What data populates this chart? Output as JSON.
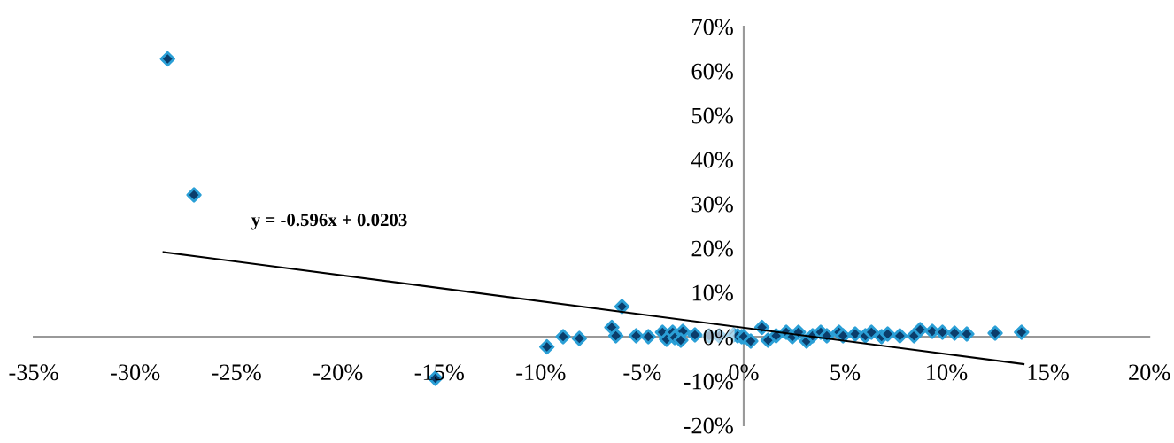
{
  "chart_data": {
    "type": "scatter",
    "annotations": [
      "y = -0.596x + 0.0203"
    ],
    "xlim": [
      -35,
      20
    ],
    "ylim": [
      -20,
      70
    ],
    "xticks": [
      {
        "value": -35,
        "label": "-35%"
      },
      {
        "value": -30,
        "label": "-30%"
      },
      {
        "value": -25,
        "label": "-25%"
      },
      {
        "value": -20,
        "label": "-20%"
      },
      {
        "value": -15,
        "label": "-15%"
      },
      {
        "value": -10,
        "label": "-10%"
      },
      {
        "value": -5,
        "label": "-5%"
      },
      {
        "value": 0,
        "label": "0%"
      },
      {
        "value": 5,
        "label": "5%"
      },
      {
        "value": 10,
        "label": "10%"
      },
      {
        "value": 15,
        "label": "15%"
      },
      {
        "value": 20,
        "label": "20%"
      }
    ],
    "yticks": [
      {
        "value": -20,
        "label": "-20%"
      },
      {
        "value": -10,
        "label": "-10%"
      },
      {
        "value": 0,
        "label": "0%"
      },
      {
        "value": 10,
        "label": "10%"
      },
      {
        "value": 20,
        "label": "20%"
      },
      {
        "value": 30,
        "label": "30%"
      },
      {
        "value": 40,
        "label": "40%"
      },
      {
        "value": 50,
        "label": "50%"
      },
      {
        "value": 60,
        "label": "60%"
      },
      {
        "value": 70,
        "label": "70%"
      }
    ],
    "grid": false,
    "legend": false,
    "marker": "diamond",
    "series": [
      {
        "color": "#0b3d6b",
        "x": [
          -28.4,
          -27.1,
          -15.2,
          -9.7,
          -8.9,
          -8.1,
          -6.0,
          -6.5,
          -6.3,
          -5.3,
          -4.7,
          -4.0,
          -3.8,
          -3.5,
          -3.4,
          -3.0,
          -3.1,
          -2.4,
          -1.7,
          -1.2,
          -0.5,
          -0.1,
          -0.3,
          0.0,
          0.35,
          0.9,
          1.2,
          1.6,
          2.1,
          2.4,
          2.7,
          3.1,
          3.4,
          3.8,
          4.1,
          4.7,
          4.9,
          5.5,
          6.0,
          6.3,
          6.8,
          7.1,
          7.7,
          8.4,
          8.7,
          9.3,
          9.8,
          10.4,
          11.0,
          12.4,
          13.7
        ],
        "values": [
          62.7,
          32.0,
          -9.4,
          -2.3,
          0.0,
          -0.4,
          6.8,
          2.1,
          0.2,
          0.2,
          0.0,
          1.0,
          -0.6,
          1.0,
          -0.2,
          1.2,
          -0.8,
          0.4,
          0.2,
          0.2,
          0.4,
          0.0,
          0.2,
          0.0,
          -1.0,
          2.1,
          -0.8,
          0.2,
          1.0,
          0.0,
          1.0,
          -1.0,
          0.2,
          1.0,
          0.2,
          1.0,
          0.2,
          0.6,
          0.2,
          1.0,
          0.0,
          0.6,
          0.2,
          0.2,
          1.6,
          1.2,
          1.0,
          0.8,
          0.6,
          0.8,
          1.0
        ]
      },
      {
        "type": "line",
        "color": "#000000",
        "x": [
          -28.6,
          13.8
        ],
        "values": [
          19.1,
          -6.2
        ],
        "line_style": "solid",
        "marker": "none"
      }
    ]
  }
}
